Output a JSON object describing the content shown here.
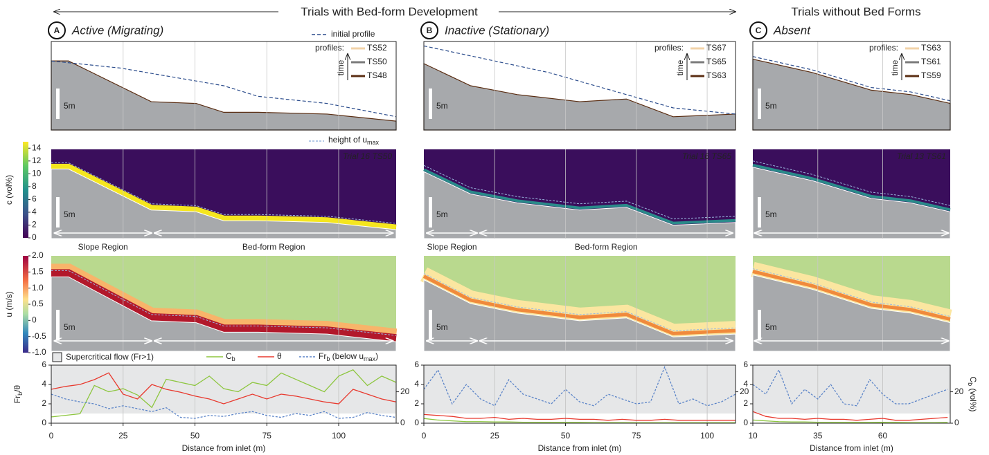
{
  "header": {
    "left": "Trials with Bed-form Development",
    "right": "Trials without Bed Forms"
  },
  "panels": [
    {
      "letter": "A",
      "title": "Active (Migrating)",
      "initial_label": "initial profile",
      "profiles_label": "profiles:",
      "time_label": "time",
      "profiles": [
        "TS52",
        "TS50",
        "TS48"
      ],
      "scale": "5m",
      "snapshot": "Trial 16 TS50",
      "regions": [
        "Slope Region",
        "Bed-form Region"
      ]
    },
    {
      "letter": "B",
      "title": "Inactive (Stationary)",
      "profiles_label": "profiles:",
      "time_label": "time",
      "profiles": [
        "TS67",
        "TS65",
        "TS63"
      ],
      "scale": "5m",
      "snapshot": "Trial 16 TS65",
      "regions": [
        "Slope Region",
        "Bed-form Region"
      ]
    },
    {
      "letter": "C",
      "title": "Absent",
      "profiles_label": "profiles:",
      "time_label": "time",
      "profiles": [
        "TS63",
        "TS61",
        "TS59"
      ],
      "scale": "5m",
      "snapshot": "Trial 13 TS61"
    }
  ],
  "umax_legend": [
    {
      "t": "height of u"
    },
    {
      "t": "max",
      "sub": true
    }
  ],
  "colorbars": [
    {
      "label": "c (vol%)",
      "lim": [
        0,
        15
      ],
      "ticks": [
        0,
        2,
        4,
        6,
        8,
        10,
        12,
        14
      ]
    },
    {
      "label": "u (m/s)",
      "lim": [
        -1,
        2
      ],
      "ticks": [
        {
          "value": -1,
          "label": "-1.0"
        },
        -0.5,
        0,
        0.5,
        {
          "value": 1,
          "label": "1.0"
        },
        1.5,
        {
          "value": 2,
          "label": "2.0"
        }
      ]
    }
  ],
  "chart_data": [
    {
      "type": "line",
      "xlabel": "Distance from inlet (m)",
      "ylabel": [
        {
          "t": "Fr"
        },
        {
          "t": "b",
          "sub": true
        },
        {
          "t": "/θ"
        }
      ],
      "shade_label": "Supercritical flow (Fr>1)",
      "shade_from": 1,
      "xlim": [
        0,
        120
      ],
      "xticks": [
        0,
        25,
        50,
        75,
        100
      ],
      "ylim": [
        0,
        6
      ],
      "yticks": [
        0,
        2,
        4,
        6
      ],
      "y2lim": [
        0,
        37
      ],
      "y2ticks": [
        0,
        20
      ],
      "x": [
        0,
        5,
        10,
        15,
        20,
        25,
        30,
        35,
        40,
        45,
        50,
        55,
        60,
        65,
        70,
        75,
        80,
        85,
        90,
        95,
        100,
        105,
        110,
        115,
        120
      ],
      "series": [
        {
          "name": [
            {
              "t": "C"
            },
            {
              "t": "b",
              "sub": true
            }
          ],
          "color": "#8dc63f",
          "axis": "y2",
          "values": [
            4,
            5,
            6,
            24,
            20,
            22,
            18,
            10,
            28,
            26,
            24,
            30,
            22,
            20,
            26,
            24,
            32,
            28,
            24,
            20,
            30,
            34,
            24,
            30,
            26
          ]
        },
        {
          "name": [
            {
              "t": "θ"
            }
          ],
          "color": "#e8392e",
          "values": [
            3.5,
            3.8,
            4,
            4.5,
            5.2,
            3,
            2.5,
            4,
            3.5,
            3.2,
            2.8,
            2.5,
            2,
            2.5,
            3,
            2.5,
            3,
            2.8,
            2.5,
            2.2,
            2,
            3.5,
            3,
            2.5,
            2.2
          ]
        },
        {
          "name": [
            {
              "t": "Fr"
            },
            {
              "t": "b",
              "sub": true
            },
            {
              "t": " (below u"
            },
            {
              "t": "max",
              "sub": true
            },
            {
              "t": ")"
            }
          ],
          "color": "#5b84c8",
          "dashed": true,
          "values": [
            3,
            2.5,
            2.2,
            2,
            1.5,
            1.8,
            1.5,
            1.2,
            1.6,
            0.6,
            0.5,
            0.8,
            0.7,
            1,
            1.2,
            0.8,
            0.6,
            1,
            0.8,
            1.2,
            0.5,
            0.6,
            1.1,
            0.8,
            0.6
          ]
        }
      ]
    },
    {
      "type": "line",
      "xlabel": "Distance from inlet (m)",
      "shade_from": 1,
      "xlim": [
        0,
        110
      ],
      "xticks": [
        0,
        25,
        50,
        75,
        100
      ],
      "ylim": [
        0,
        6
      ],
      "yticks": [
        0,
        2,
        4,
        6
      ],
      "y2lim": [
        0,
        37
      ],
      "y2ticks": [
        20
      ],
      "x": [
        0,
        5,
        10,
        15,
        20,
        25,
        30,
        35,
        40,
        45,
        50,
        55,
        60,
        65,
        70,
        75,
        80,
        85,
        90,
        95,
        100,
        105,
        110
      ],
      "series": [
        {
          "color": "#8dc63f",
          "axis": "y2",
          "values": [
            3,
            2,
            1.5,
            1,
            1,
            0.8,
            0.8,
            0.6,
            0.6,
            0.5,
            0.5,
            0.5,
            0.4,
            0.4,
            0.4,
            0.3,
            0.3,
            0.3,
            0.3,
            0.3,
            0.3,
            0.3,
            0.3
          ]
        },
        {
          "color": "#e8392e",
          "values": [
            0.9,
            0.8,
            0.7,
            0.5,
            0.5,
            0.6,
            0.4,
            0.5,
            0.4,
            0.4,
            0.5,
            0.4,
            0.4,
            0.3,
            0.4,
            0.3,
            0.3,
            0.4,
            0.3,
            0.3,
            0.3,
            0.3,
            0.3
          ]
        },
        {
          "color": "#5b84c8",
          "dashed": true,
          "values": [
            3.5,
            5.5,
            2,
            4,
            2.5,
            1.8,
            4.5,
            3,
            2.5,
            2,
            3.5,
            2.2,
            1.8,
            3,
            2.5,
            2,
            2.2,
            5.8,
            2,
            2.5,
            1.8,
            2.2,
            3
          ]
        }
      ]
    },
    {
      "type": "line",
      "xlabel": "Distance from inlet (m)",
      "y2label": [
        {
          "t": "C"
        },
        {
          "t": "b",
          "sub": true
        },
        {
          "t": " (vol%)"
        }
      ],
      "shade_from": 1,
      "xlim": [
        10,
        86
      ],
      "xticks": [
        10,
        35,
        60
      ],
      "ylim": [
        0,
        6
      ],
      "yticks": [
        0,
        2,
        4,
        6
      ],
      "y2lim": [
        0,
        37
      ],
      "y2ticks": [
        0,
        20
      ],
      "x": [
        10,
        15,
        20,
        25,
        30,
        35,
        40,
        45,
        50,
        55,
        60,
        65,
        70,
        75,
        80,
        85
      ],
      "series": [
        {
          "color": "#8dc63f",
          "axis": "y2",
          "values": [
            2,
            1.5,
            1,
            0.8,
            0.8,
            0.6,
            0.6,
            0.5,
            0.5,
            0.5,
            0.6,
            0.5,
            0.4,
            0.4,
            0.4,
            0.5
          ]
        },
        {
          "color": "#e8392e",
          "values": [
            1.2,
            0.7,
            0.5,
            0.5,
            0.4,
            0.5,
            0.4,
            0.4,
            0.3,
            0.4,
            0.5,
            0.3,
            0.3,
            0.4,
            0.5,
            0.6
          ]
        },
        {
          "color": "#5b84c8",
          "dashed": true,
          "values": [
            4,
            3,
            5.5,
            2,
            3.5,
            2.5,
            4,
            2,
            1.8,
            4.5,
            3,
            2,
            2,
            2.5,
            3,
            3.5
          ]
        }
      ]
    }
  ]
}
